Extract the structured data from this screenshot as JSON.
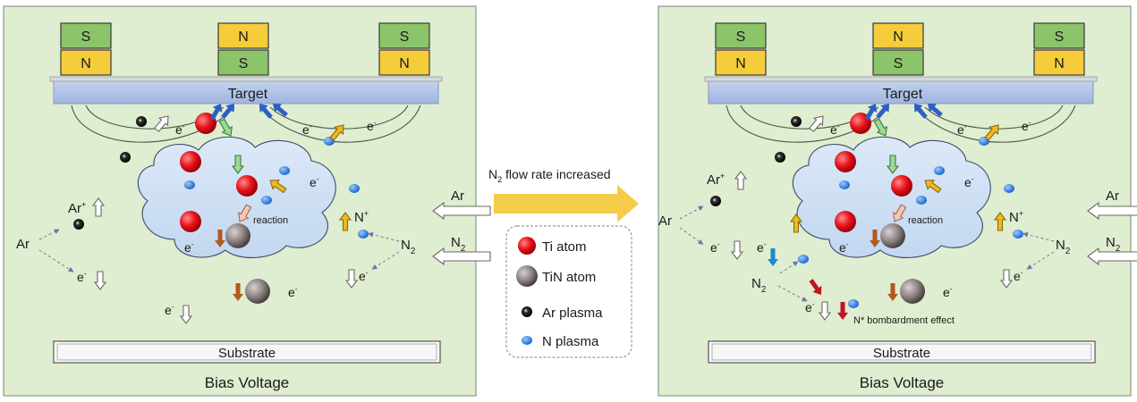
{
  "magnets": [
    {
      "top": "S",
      "bottom": "N"
    },
    {
      "top": "N",
      "bottom": "S"
    },
    {
      "top": "S",
      "bottom": "N"
    }
  ],
  "colors": {
    "panel_bg": "#dfedd0",
    "panel_border": "#8a9a8a",
    "magnet_green": "#8cc46a",
    "magnet_yellow": "#f5cc3a",
    "target": "#b7c8ea",
    "target_text": "#e8863a",
    "cloud": "#cfe0f5",
    "ti_atom": "#e8141c",
    "tin_atom": "#8a8080",
    "n_plasma": "#1c78e0",
    "ar_plasma": "#1a1a1a",
    "big_arrow": "#f5cc4a",
    "bombard_text": "#c0141c"
  },
  "left_panel": {
    "target": "Target",
    "substrate": "Substrate",
    "bias": "Bias Voltage",
    "reaction": "reaction",
    "ar_label": "Ar",
    "ar_ion": "Ar",
    "n2_label": "N",
    "n_ion": "N",
    "gas_in_ar": "Ar",
    "gas_in_n2": "N",
    "electron": "e"
  },
  "right_panel": {
    "target": "Target",
    "substrate": "Substrate",
    "bias": "Bias Voltage",
    "reaction": "reaction",
    "ar_label": "Ar",
    "ar_ion": "Ar",
    "n2_label": "N",
    "n2_lower_label": "N",
    "n_ion": "N",
    "gas_in_ar": "Ar",
    "gas_in_n2": "N",
    "electron": "e",
    "bombardment": "N* bombardment effect"
  },
  "middle": {
    "flow_label": "N",
    "flow_label_rest": " flow rate increased",
    "subscript": "2"
  },
  "legend": {
    "items": [
      {
        "name": "ti-atom",
        "label": "Ti atom"
      },
      {
        "name": "tin-atom",
        "label": "TiN atom"
      },
      {
        "name": "ar-plasma",
        "label": "Ar plasma"
      },
      {
        "name": "n-plasma",
        "label": "N plasma"
      }
    ]
  }
}
